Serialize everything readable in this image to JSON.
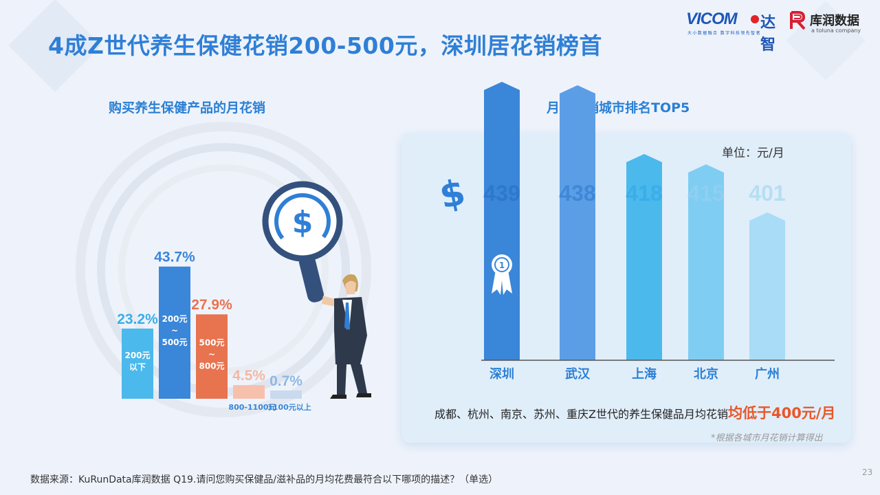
{
  "title": "4成Z世代养生保健花销200-500元，深圳居花销榜首",
  "logos": {
    "vicom_word": "VICOM",
    "vicom_cn": "达智",
    "vicom_tagline": "大小数据融合 数字科技领先智者",
    "kurun_cn": "库润数据",
    "kurun_en": "a toluna company"
  },
  "colors": {
    "title": "#2f7fd6",
    "highlight": "#e8572a",
    "bar_light_blue": "#4bb9ec",
    "bar_blue": "#3a86d8",
    "bar_orange": "#e8734f",
    "bar_pink": "#f7c0ac",
    "bar_grey": "#c9d9ee"
  },
  "chart_data": [
    {
      "type": "bar",
      "title": "购买养生保健产品的月花销",
      "categories": [
        "200元以下",
        "200元~500元",
        "500元~800元",
        "800-1100元",
        "1100元以上"
      ],
      "values": [
        23.2,
        43.7,
        27.9,
        4.5,
        0.7
      ],
      "value_labels": [
        "23.2%",
        "43.7%",
        "27.9%",
        "4.5%",
        "0.7%"
      ],
      "inner_labels": [
        [
          "200元",
          "以下"
        ],
        [
          "200元",
          "~",
          "500元"
        ],
        [
          "500元",
          "~",
          "800元"
        ],
        [],
        []
      ],
      "outer_labels": [
        "",
        "",
        "",
        "800-1100元",
        "1100元以上"
      ],
      "colors": [
        "#4bb9ec",
        "#3a86d8",
        "#e8734f",
        "#f7c0ac",
        "#c9d9ee"
      ],
      "label_colors": [
        "#3aaee8",
        "#3a86d8",
        "#e8734f",
        "#f4b8a2",
        "#8fb8e6"
      ],
      "ylim": [
        0,
        50
      ]
    },
    {
      "type": "bar",
      "title": "月均花销城市排名TOP5",
      "unit": "单位：元/月",
      "categories": [
        "深圳",
        "武汉",
        "上海",
        "北京",
        "广州"
      ],
      "values": [
        439,
        438,
        418,
        415,
        401
      ],
      "colors": [
        "#3a86d8",
        "#5c9ee6",
        "#4bb9ec",
        "#7fcdf2",
        "#a9dcf6"
      ],
      "label_colors": [
        "#2e78cc",
        "#3f88d8",
        "#3aaee8",
        "#8fcff2",
        "#b6def4"
      ],
      "badge": "1"
    }
  ],
  "summary_text": "成都、杭州、南京、苏州、重庆Z世代的养生保健品月均花销",
  "summary_highlight": "均低于400元/月",
  "footnote": "*根据各城市月花销计算得出",
  "source": "数据来源：KuRunData库润数据 Q19.请问您购买保健品/滋补品的月均花费最符合以下哪项的描述？（单选）",
  "page_number": "23"
}
